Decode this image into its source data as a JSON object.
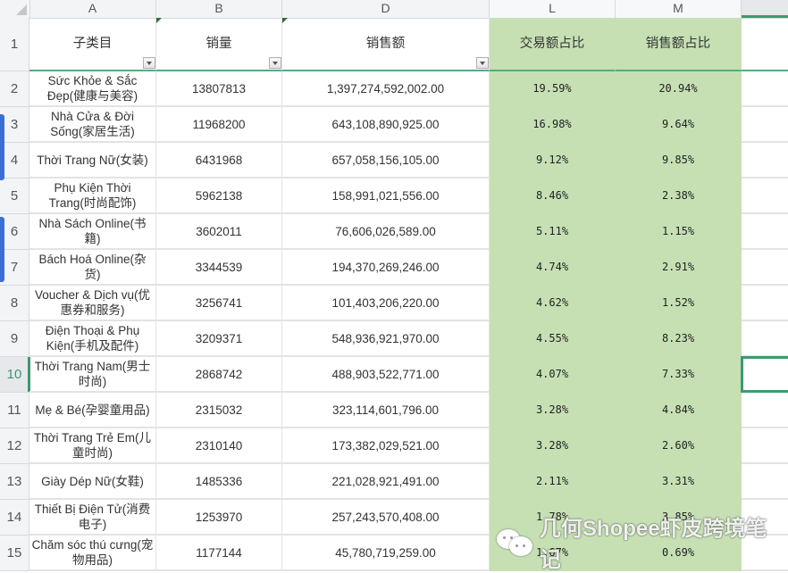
{
  "columns": [
    {
      "letter": "A",
      "header": "子类目"
    },
    {
      "letter": "B",
      "header": "销量"
    },
    {
      "letter": "D",
      "header": "销售额"
    },
    {
      "letter": "L",
      "header": "交易额占比"
    },
    {
      "letter": "M",
      "header": "销售额占比"
    }
  ],
  "header_row_number": "1",
  "rows": [
    {
      "n": "2",
      "category": "Sức Khỏe & Sắc Đẹp(健康与美容)",
      "sales": "13807813",
      "revenue": "1,397,274,592,002.00",
      "trade_share": "19.59%",
      "revenue_share": "20.94%"
    },
    {
      "n": "3",
      "category": "Nhà Cửa & Đời Sống(家居生活)",
      "sales": "11968200",
      "revenue": "643,108,890,925.00",
      "trade_share": "16.98%",
      "revenue_share": "9.64%"
    },
    {
      "n": "4",
      "category": "Thời Trang Nữ(女装)",
      "sales": "6431968",
      "revenue": "657,058,156,105.00",
      "trade_share": "9.12%",
      "revenue_share": "9.85%"
    },
    {
      "n": "5",
      "category": "Phụ Kiện Thời Trang(时尚配饰)",
      "sales": "5962138",
      "revenue": "158,991,021,556.00",
      "trade_share": "8.46%",
      "revenue_share": "2.38%"
    },
    {
      "n": "6",
      "category": "Nhà Sách Online(书籍)",
      "sales": "3602011",
      "revenue": "76,606,026,589.00",
      "trade_share": "5.11%",
      "revenue_share": "1.15%"
    },
    {
      "n": "7",
      "category": "Bách Hoá Online(杂货)",
      "sales": "3344539",
      "revenue": "194,370,269,246.00",
      "trade_share": "4.74%",
      "revenue_share": "2.91%"
    },
    {
      "n": "8",
      "category": "Voucher & Dịch vụ(优惠券和服务)",
      "sales": "3256741",
      "revenue": "101,403,206,220.00",
      "trade_share": "4.62%",
      "revenue_share": "1.52%"
    },
    {
      "n": "9",
      "category": "Điện Thoại & Phụ Kiện(手机及配件)",
      "sales": "3209371",
      "revenue": "548,936,921,970.00",
      "trade_share": "4.55%",
      "revenue_share": "8.23%"
    },
    {
      "n": "10",
      "category": "Thời Trang Nam(男士时尚)",
      "sales": "2868742",
      "revenue": "488,903,522,771.00",
      "trade_share": "4.07%",
      "revenue_share": "7.33%"
    },
    {
      "n": "11",
      "category": "Mẹ & Bé(孕婴童用品)",
      "sales": "2315032",
      "revenue": "323,114,601,796.00",
      "trade_share": "3.28%",
      "revenue_share": "4.84%"
    },
    {
      "n": "12",
      "category": "Thời Trang Trẻ Em(儿童时尚)",
      "sales": "2310140",
      "revenue": "173,382,029,521.00",
      "trade_share": "3.28%",
      "revenue_share": "2.60%"
    },
    {
      "n": "13",
      "category": "Giày Dép Nữ(女鞋)",
      "sales": "1485336",
      "revenue": "221,028,921,491.00",
      "trade_share": "2.11%",
      "revenue_share": "3.31%"
    },
    {
      "n": "14",
      "category": "Thiết Bị Điện Tử(消费电子)",
      "sales": "1253970",
      "revenue": "257,243,570,408.00",
      "trade_share": "1.78%",
      "revenue_share": "3.85%"
    },
    {
      "n": "15",
      "category": "Chăm sóc thú cưng(宠物用品)",
      "sales": "1177144",
      "revenue": "45,780,719,259.00",
      "trade_share": "1.67%",
      "revenue_share": "0.69%"
    }
  ],
  "active_row": "10",
  "watermark": {
    "text": "几何Shopee虾皮跨境笔记",
    "icon": "wechat-icon"
  },
  "colors": {
    "highlight_fill": "#c6e0b4",
    "selection": "#3d9a6e",
    "group_bar": "#3b6fd6"
  }
}
